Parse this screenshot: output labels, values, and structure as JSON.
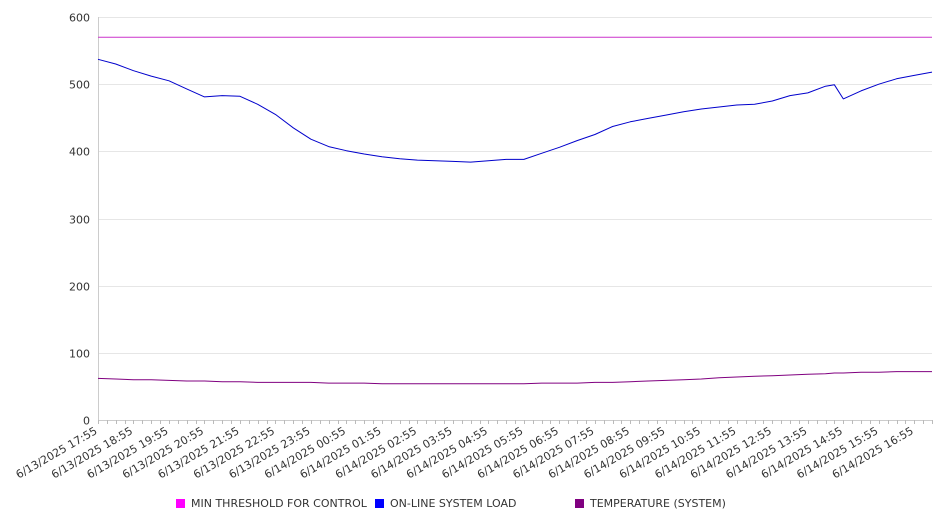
{
  "chart_data": {
    "type": "line",
    "title": "",
    "xlabel": "",
    "ylabel": "",
    "ylim": [
      0,
      600
    ],
    "yticks": [
      0,
      100,
      200,
      300,
      400,
      500,
      600
    ],
    "grid": true,
    "legend_position": "bottom",
    "x_tick_labels": [
      "6/13/2025 17:55",
      "6/13/2025 18:55",
      "6/13/2025 19:55",
      "6/13/2025 20:55",
      "6/13/2025 21:55",
      "6/13/2025 22:55",
      "6/13/2025 23:55",
      "6/14/2025 00:55",
      "6/14/2025 01:55",
      "6/14/2025 02:55",
      "6/14/2025 03:55",
      "6/14/2025 04:55",
      "6/14/2025 05:55",
      "6/14/2025 06:55",
      "6/14/2025 07:55",
      "6/14/2025 08:55",
      "6/14/2025 09:55",
      "6/14/2025 10:55",
      "6/14/2025 11:55",
      "6/14/2025 12:55",
      "6/14/2025 13:55",
      "6/14/2025 14:55",
      "6/14/2025 15:55",
      "6/14/2025 16:55"
    ],
    "x": [
      "6/13/2025 17:55",
      "6/13/2025 18:25",
      "6/13/2025 18:55",
      "6/13/2025 19:25",
      "6/13/2025 19:55",
      "6/13/2025 20:25",
      "6/13/2025 20:55",
      "6/13/2025 21:25",
      "6/13/2025 21:55",
      "6/13/2025 22:25",
      "6/13/2025 22:55",
      "6/13/2025 23:25",
      "6/13/2025 23:55",
      "6/14/2025 00:25",
      "6/14/2025 00:55",
      "6/14/2025 01:25",
      "6/14/2025 01:55",
      "6/14/2025 02:25",
      "6/14/2025 02:55",
      "6/14/2025 03:25",
      "6/14/2025 03:55",
      "6/14/2025 04:25",
      "6/14/2025 04:55",
      "6/14/2025 05:25",
      "6/14/2025 05:55",
      "6/14/2025 06:25",
      "6/14/2025 06:55",
      "6/14/2025 07:25",
      "6/14/2025 07:55",
      "6/14/2025 08:25",
      "6/14/2025 08:55",
      "6/14/2025 09:25",
      "6/14/2025 09:55",
      "6/14/2025 10:25",
      "6/14/2025 10:55",
      "6/14/2025 11:25",
      "6/14/2025 11:55",
      "6/14/2025 12:25",
      "6/14/2025 12:55",
      "6/14/2025 13:25",
      "6/14/2025 13:55",
      "6/14/2025 14:25",
      "6/14/2025 14:40",
      "6/14/2025 14:55",
      "6/14/2025 15:25",
      "6/14/2025 15:55",
      "6/14/2025 16:25",
      "6/14/2025 16:55",
      "6/14/2025 17:25"
    ],
    "series": [
      {
        "name": "MIN THRESHOLD FOR CONTROL",
        "color": "#cc33cc",
        "swatch": "#ff00ff",
        "values": [
          570,
          570,
          570,
          570,
          570,
          570,
          570,
          570,
          570,
          570,
          570,
          570,
          570,
          570,
          570,
          570,
          570,
          570,
          570,
          570,
          570,
          570,
          570,
          570,
          570,
          570,
          570,
          570,
          570,
          570,
          570,
          570,
          570,
          570,
          570,
          570,
          570,
          570,
          570,
          570,
          570,
          570,
          570,
          570,
          570,
          570,
          570,
          570,
          570
        ]
      },
      {
        "name": "ON-LINE SYSTEM LOAD",
        "color": "#0000cc",
        "swatch": "#0000ff",
        "values": [
          537,
          530,
          520,
          512,
          505,
          493,
          481,
          483,
          482,
          470,
          455,
          435,
          418,
          407,
          401,
          396,
          392,
          389,
          387,
          386,
          385,
          384,
          386,
          388,
          388,
          397,
          406,
          416,
          425,
          437,
          444,
          449,
          454,
          459,
          463,
          466,
          469,
          470,
          475,
          483,
          487,
          497,
          499,
          478,
          490,
          500,
          508,
          513,
          518
        ]
      },
      {
        "name": "TEMPERATURE (SYSTEM)",
        "color": "#800080",
        "swatch": "#800080",
        "values": [
          62,
          61,
          60,
          60,
          59,
          58,
          58,
          57,
          57,
          56,
          56,
          56,
          56,
          55,
          55,
          55,
          54,
          54,
          54,
          54,
          54,
          54,
          54,
          54,
          54,
          55,
          55,
          55,
          56,
          56,
          57,
          58,
          59,
          60,
          61,
          63,
          64,
          65,
          66,
          67,
          68,
          69,
          70,
          70,
          71,
          71,
          72,
          72,
          72
        ]
      }
    ]
  }
}
